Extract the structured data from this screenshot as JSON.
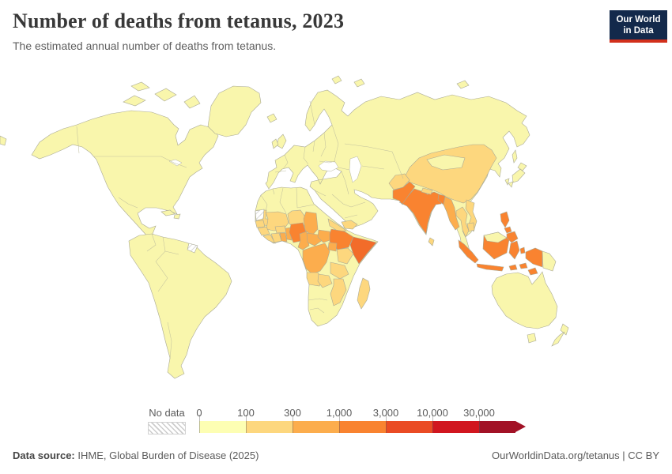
{
  "meta": {
    "title": "Number of deaths from tetanus, 2023",
    "subtitle": "The estimated annual number of deaths from tetanus."
  },
  "logo": {
    "line1": "Our World",
    "line2": "in Data",
    "bg": "#13294B",
    "accent": "#D2301C"
  },
  "legend": {
    "no_data_label": "No data",
    "ticks": [
      "0",
      "100",
      "300",
      "1,000",
      "3,000",
      "10,000",
      "30,000"
    ],
    "colors": [
      "#FDFEB3",
      "#FDD77E",
      "#FCAD4D",
      "#F98330",
      "#EA4B24",
      "#D1161F",
      "#A21226"
    ]
  },
  "footer": {
    "source_label": "Data source:",
    "source_text": " IHME, Global Burden of Disease (2025)",
    "credit": "OurWorldinData.org/tetanus | CC BY"
  },
  "chart_data": {
    "type": "heatmap",
    "subtype": "choropleth-world-map",
    "title": "Number of deaths from tetanus, 2023",
    "unit": "deaths",
    "year": "2023",
    "bins": [
      {
        "label": "0-100",
        "color": "#FDFEB3"
      },
      {
        "label": "100-300",
        "color": "#FDD77E"
      },
      {
        "label": "300-1,000",
        "color": "#FCAD4D"
      },
      {
        "label": "1,000-3,000",
        "color": "#F98330"
      },
      {
        "label": "3,000-10,000",
        "color": "#EA4B24"
      },
      {
        "label": "10,000-30,000",
        "color": "#D1161F"
      },
      {
        "label": "30,000+",
        "color": "#A21226"
      },
      {
        "label": "No data",
        "color": "hatch"
      }
    ],
    "palette": {
      "band0": "#F9F6AC",
      "band1": "#FDD77E",
      "band2": "#FCAD4D",
      "band3": "#F98330",
      "band3r": "#F26C2A",
      "band4": "#EA4B24",
      "band5": "#D1161F",
      "band6": "#A21226",
      "sea": "#FFFFFF"
    },
    "regions": {
      "north-america": "band0",
      "greenland": "band0",
      "arctic-island-1": "band0",
      "arctic-island-2": "band0",
      "arctic-island-3": "band0",
      "arctic-island-4": "band0",
      "south-america": "band0",
      "eurasia": "band0",
      "africa": "band0",
      "australia": "band0",
      "tasmania": "band0",
      "new-zealand-north": "band0",
      "new-zealand-south": "band0",
      "united-kingdom": "band0",
      "ireland": "band0",
      "iceland": "band0",
      "svalbard": "band0",
      "arctic-russia-island": "band0",
      "new-siberian-islands": "band0",
      "sakhalin": "band0",
      "japan-hokkaido": "band0",
      "japan-honshu": "band0",
      "japan-kyushu": "band0",
      "cuba": "band0",
      "hispaniola": "band0",
      "taiwan": "band0",
      "chukotka-sliver": "band0",
      "mongolia": "band0",
      "papua-new-guinea": "band0",
      "borneo-malaysia": "band0",
      "western-sahara": "nodata",
      "french-guiana": "nodata",
      "mauritania": "band1",
      "mali": "band1",
      "niger": "band1",
      "senegal": "band1",
      "guinea": "band1",
      "sierra-leone-liberia": "band1",
      "ivory-coast": "band1",
      "burkina-faso": "band1",
      "eritrea": "band1",
      "kenya": "band1",
      "tanzania": "band1",
      "angola": "band1",
      "zambia": "band1",
      "mozambique": "band1",
      "madagascar": "band1",
      "yemen": "band1",
      "afghanistan": "band1",
      "nepal": "band1",
      "china": "band1",
      "thailand": "band1",
      "laos-vietnam": "band1",
      "cambodia": "band1",
      "sri-lanka": "band1",
      "chad": "band2",
      "ghana": "band2",
      "togo-benin": "band2",
      "cameroon": "band2",
      "central-african-republic": "band2",
      "south-sudan": "band2",
      "uganda": "band2",
      "dr-congo": "band2",
      "myanmar": "band2",
      "nigeria": "band3",
      "ethiopia": "band3",
      "india": "band3",
      "pakistan": "band3",
      "bangladesh": "band3",
      "indonesia-sumatra": "band3",
      "indonesia-java": "band3",
      "indonesia-kalimantan": "band3",
      "indonesia-sulawesi": "band3",
      "lesser-sunda-1": "band3",
      "lesser-sunda-2": "band3",
      "timor": "band3",
      "maluku": "band3",
      "indonesia-papua": "band3",
      "philippines-luzon": "band3",
      "philippines-visayas": "band3",
      "philippines-mindanao": "band3",
      "somalia": "band3r",
      "black-sea": "sea",
      "caspian-sea": "sea",
      "great-lakes": "sea"
    }
  }
}
